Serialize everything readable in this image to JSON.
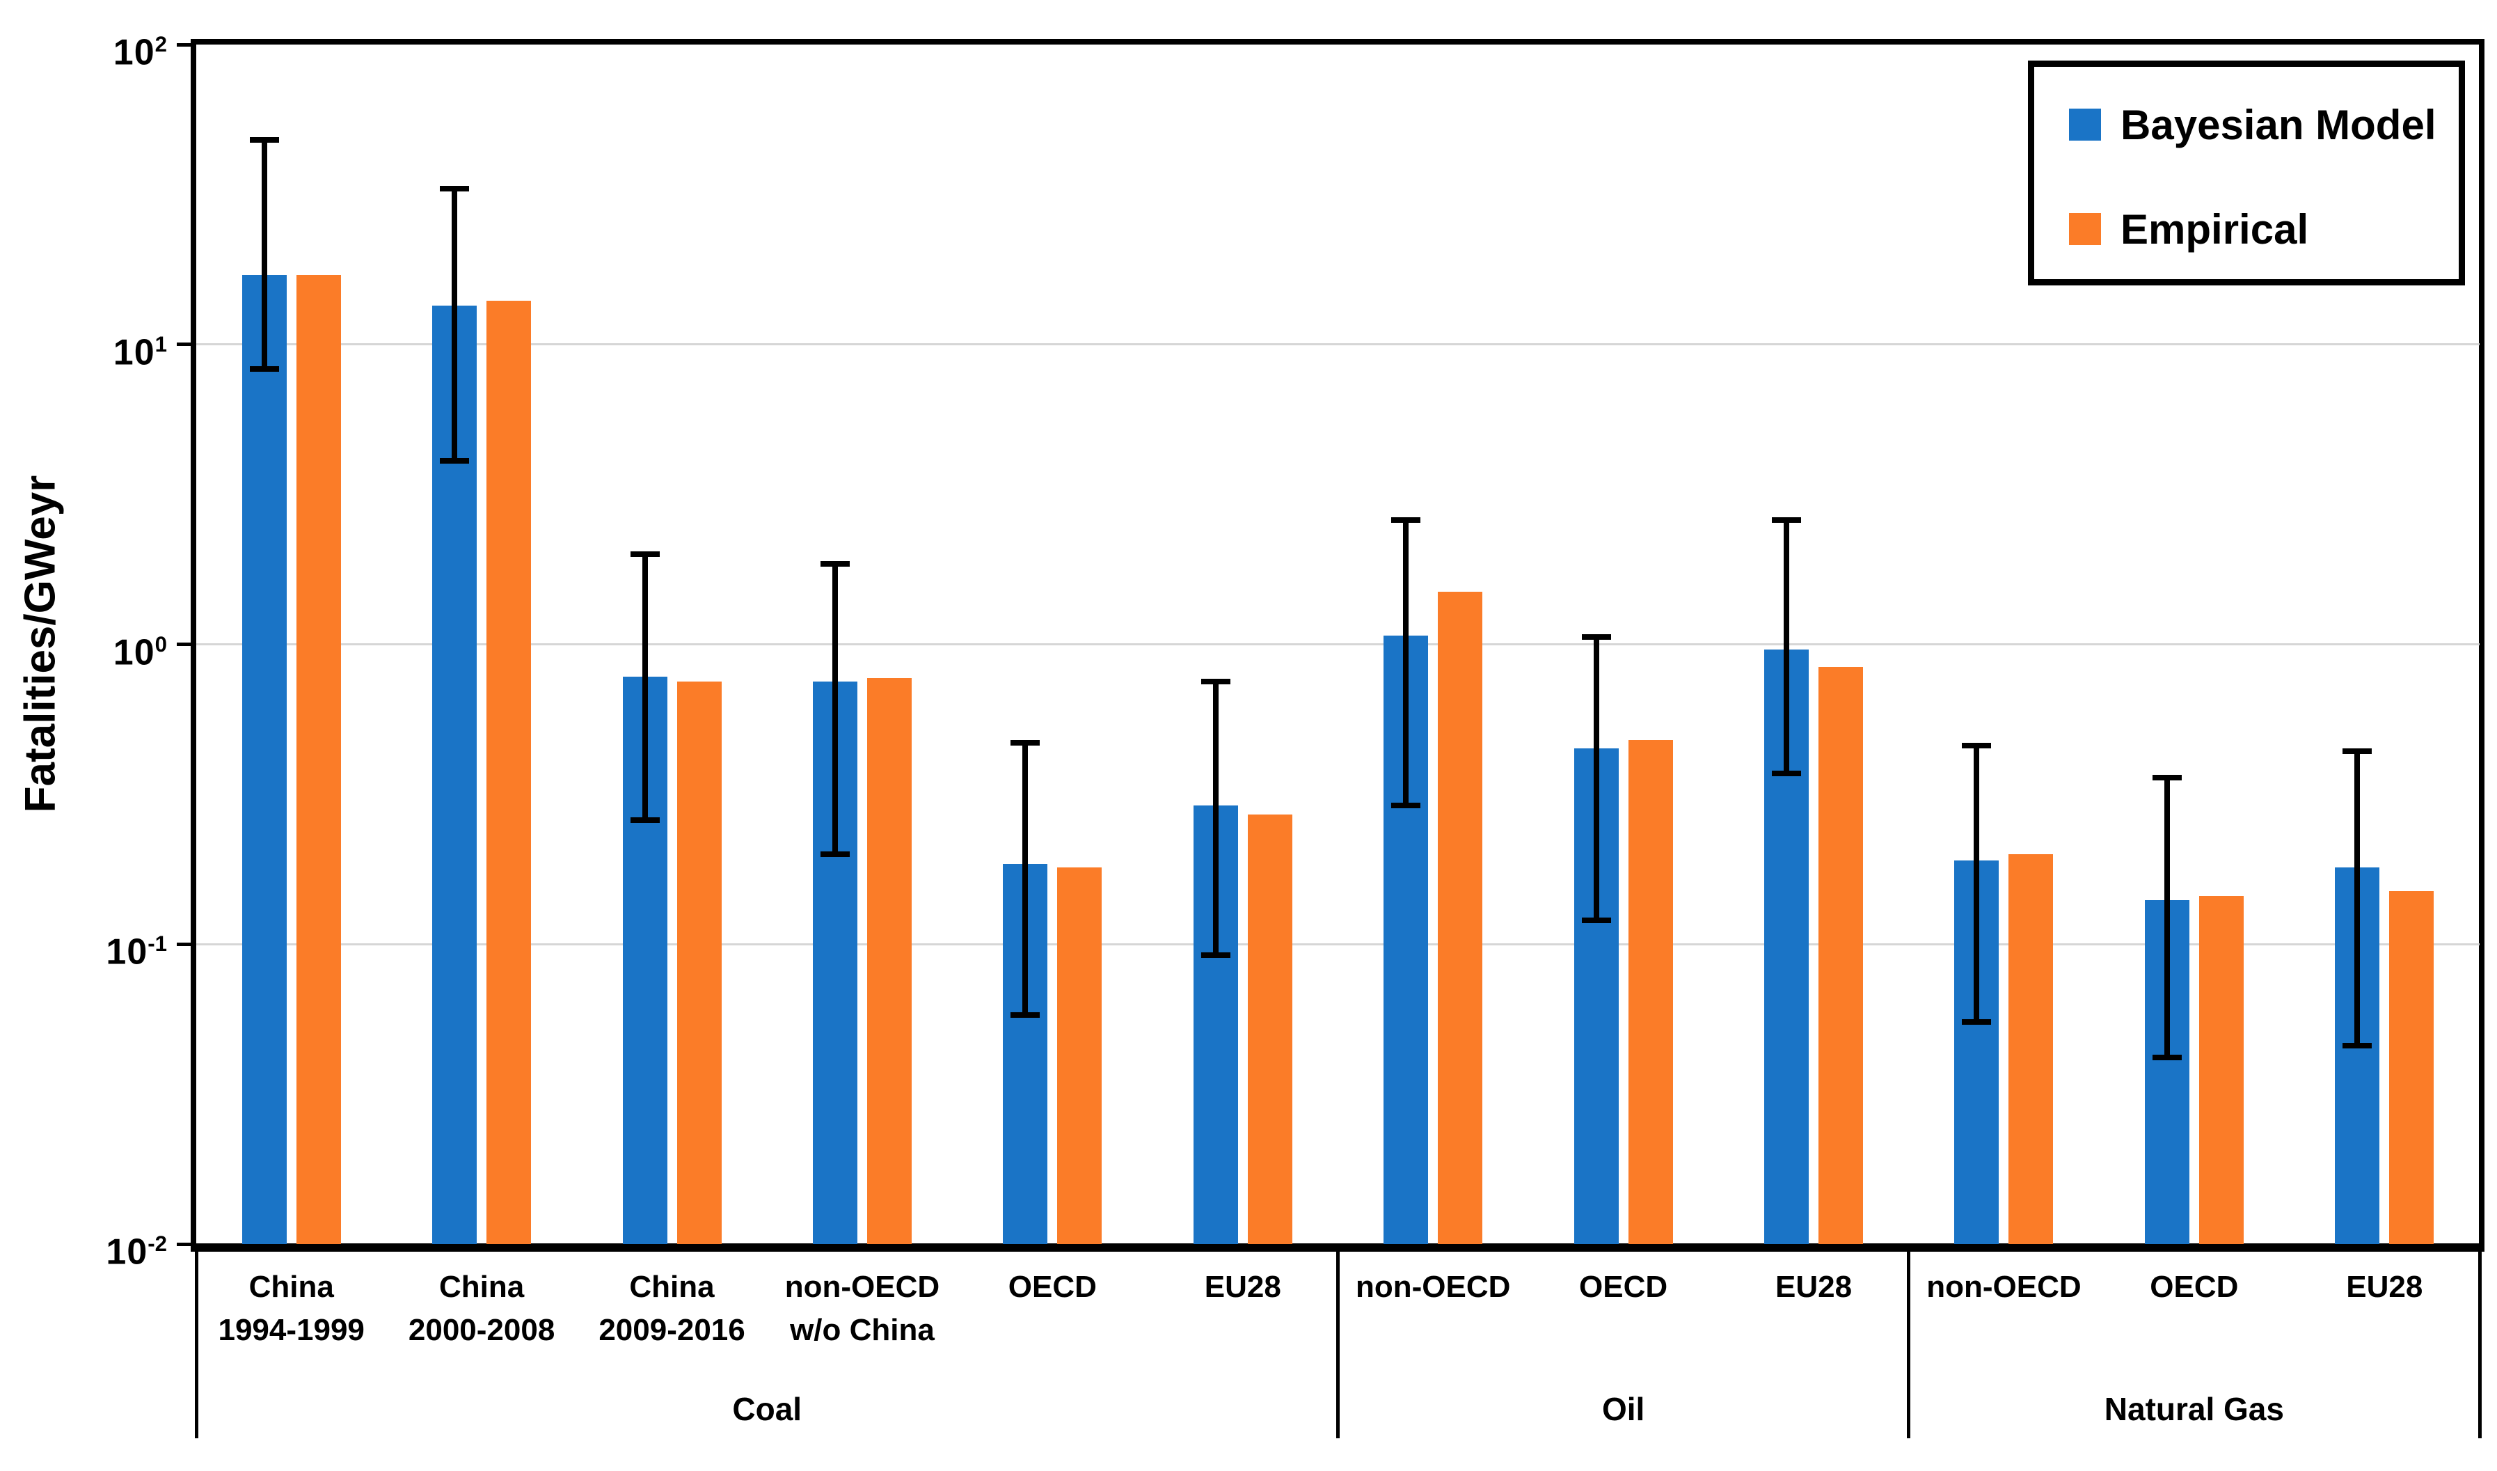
{
  "chart_data": {
    "type": "bar",
    "title": "",
    "ylabel": "Fatalities/GWeyr",
    "xlabel": "",
    "y_scale": "log",
    "ylim": [
      0.01,
      100
    ],
    "y_tick_base": "10",
    "y_tick_exponents": [
      2,
      1,
      0,
      -1,
      -2
    ],
    "grid": "horizontal-decades",
    "legend_position": "top-right",
    "legend": [
      {
        "label": "Bayesian Model",
        "color": "#1A74C6"
      },
      {
        "label": "Empirical",
        "color": "#FB7C28"
      }
    ],
    "series_note": "bayesian values carry black error bars (ci = [low, high]); units are Fatalities/GWeyr",
    "groups": [
      {
        "label": "Coal",
        "categories": [
          {
            "label_lines": [
              "China",
              "1994-1999"
            ],
            "bayesian": 17,
            "ci": [
              8.3,
              48
            ],
            "empirical": 17
          },
          {
            "label_lines": [
              "China",
              "2000-2008"
            ],
            "bayesian": 13.5,
            "ci": [
              4.1,
              33
            ],
            "empirical": 14
          },
          {
            "label_lines": [
              "China",
              "2009-2016"
            ],
            "bayesian": 0.78,
            "ci": [
              0.26,
              2.0
            ],
            "empirical": 0.75
          },
          {
            "label_lines": [
              "non-OECD",
              "w/o China"
            ],
            "bayesian": 0.75,
            "ci": [
              0.2,
              1.85
            ],
            "empirical": 0.77
          },
          {
            "label_lines": [
              "OECD"
            ],
            "bayesian": 0.185,
            "ci": [
              0.058,
              0.47
            ],
            "empirical": 0.18
          },
          {
            "label_lines": [
              "EU28"
            ],
            "bayesian": 0.29,
            "ci": [
              0.092,
              0.75
            ],
            "empirical": 0.27
          }
        ]
      },
      {
        "label": "Oil",
        "categories": [
          {
            "label_lines": [
              "non-OECD"
            ],
            "bayesian": 1.07,
            "ci": [
              0.29,
              2.6
            ],
            "empirical": 1.5
          },
          {
            "label_lines": [
              "OECD"
            ],
            "bayesian": 0.45,
            "ci": [
              0.12,
              1.06
            ],
            "empirical": 0.48
          },
          {
            "label_lines": [
              "EU28"
            ],
            "bayesian": 0.96,
            "ci": [
              0.37,
              2.6
            ],
            "empirical": 0.84
          }
        ]
      },
      {
        "label": "Natural Gas",
        "categories": [
          {
            "label_lines": [
              "non-OECD"
            ],
            "bayesian": 0.19,
            "ci": [
              0.055,
              0.46
            ],
            "empirical": 0.2
          },
          {
            "label_lines": [
              "OECD"
            ],
            "bayesian": 0.14,
            "ci": [
              0.042,
              0.36
            ],
            "empirical": 0.145
          },
          {
            "label_lines": [
              "EU28"
            ],
            "bayesian": 0.18,
            "ci": [
              0.046,
              0.44
            ],
            "empirical": 0.15
          }
        ]
      }
    ]
  }
}
